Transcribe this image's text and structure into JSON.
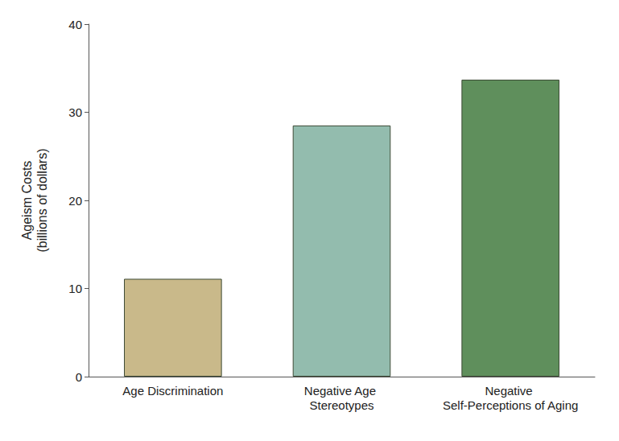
{
  "chart_data": {
    "type": "bar",
    "y_label": "Ageism Costs\n(billions of dollars)",
    "categories": [
      "Age Discrimination",
      "Negative Age Stereotypes",
      "Negative Self-Perceptions of Aging"
    ],
    "values": [
      11.1,
      28.5,
      33.7
    ],
    "colors": [
      "#c9b98a",
      "#93bcae",
      "#5f8f5c"
    ],
    "ylim": [
      0,
      40
    ],
    "yticks": [
      0,
      10,
      20,
      30,
      40
    ],
    "grid": false
  }
}
